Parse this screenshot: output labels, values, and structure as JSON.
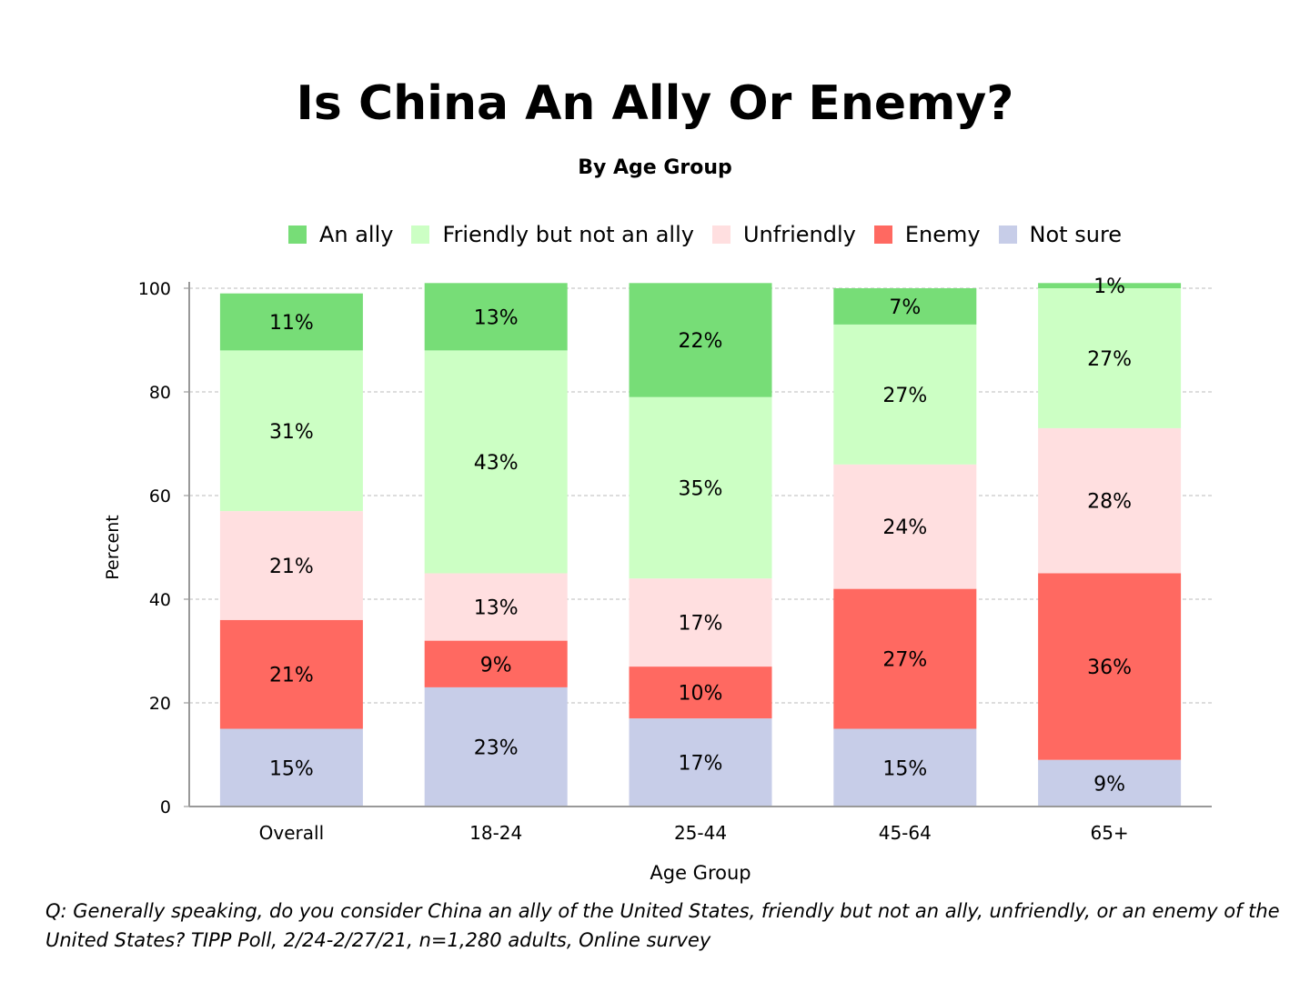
{
  "title": "Is China An Ally Or Enemy?",
  "subtitle": "By Age Group",
  "footnote": "Q:  Generally speaking, do you consider China an ally of the United States, friendly but not an ally, unfriendly, or an enemy of the United States?  TIPP Poll, 2/24-2/27/21, n=1,280 adults, Online survey",
  "chart_data": {
    "type": "bar",
    "stacked": true,
    "title": "Is China An Ally Or Enemy?",
    "subtitle": "By Age Group",
    "xlabel": "Age Group",
    "ylabel": "Percent",
    "ylim": [
      0,
      100
    ],
    "yticks": [
      0,
      20,
      40,
      60,
      80,
      100
    ],
    "grid": true,
    "legend_position": "top",
    "categories": [
      "Overall",
      "18-24",
      "25-44",
      "45-64",
      "65+"
    ],
    "series": [
      {
        "name": "Not sure",
        "color": "#c7cde8",
        "values": [
          15,
          23,
          17,
          15,
          9
        ],
        "labels": [
          "15%",
          "23%",
          "17%",
          "15%",
          "9%"
        ]
      },
      {
        "name": "Enemy",
        "color": "#ff6961",
        "values": [
          21,
          9,
          10,
          27,
          36
        ],
        "labels": [
          "21%",
          "9%",
          "10%",
          "27%",
          "36%"
        ]
      },
      {
        "name": "Unfriendly",
        "color": "#ffdfe0",
        "values": [
          21,
          13,
          17,
          24,
          28
        ],
        "labels": [
          "21%",
          "13%",
          "17%",
          "24%",
          "28%"
        ]
      },
      {
        "name": "Friendly but not an ally",
        "color": "#ccffc4",
        "values": [
          31,
          43,
          35,
          27,
          27
        ],
        "labels": [
          "31%",
          "43%",
          "35%",
          "27%",
          "27%"
        ]
      },
      {
        "name": "An ally",
        "color": "#77dd77",
        "values": [
          11,
          13,
          22,
          7,
          1
        ],
        "labels": [
          "11%",
          "13%",
          "22%",
          "7%",
          "1%"
        ]
      }
    ],
    "legend_order": [
      "An ally",
      "Friendly but not an ally",
      "Unfriendly",
      "Enemy",
      "Not sure"
    ]
  }
}
